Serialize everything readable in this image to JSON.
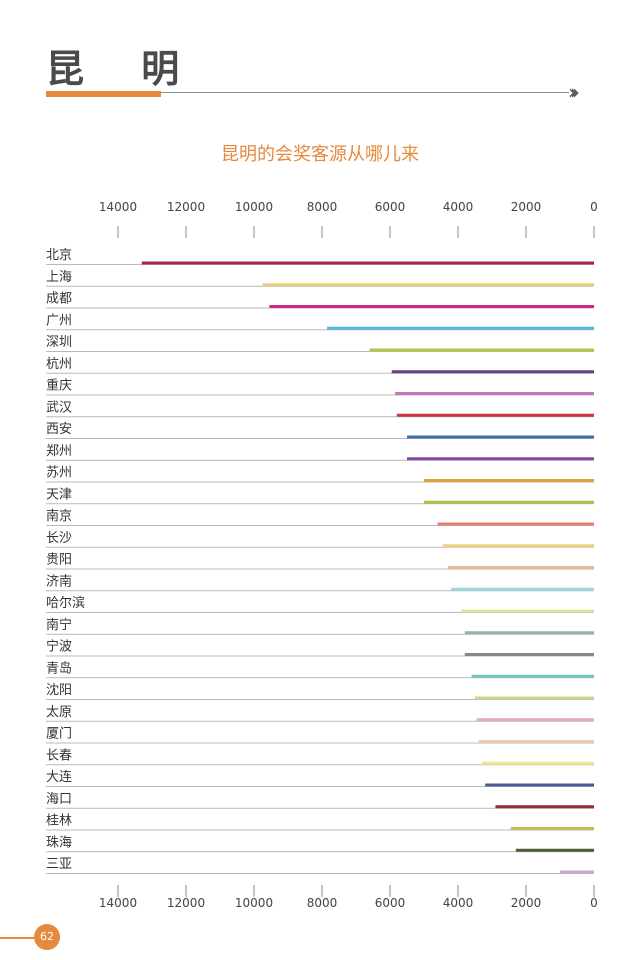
{
  "header": {
    "title": "昆 明",
    "chevrons": "›››"
  },
  "colors": {
    "accent": "#e58a3c",
    "title_text": "#4a4a4a"
  },
  "page_number": "62",
  "chart_data": {
    "type": "bar",
    "orientation": "horizontal",
    "x_direction": "reversed",
    "title": "昆明的会奖客源从哪儿来",
    "xlabel": "",
    "ylabel": "",
    "xlim": [
      0,
      14000
    ],
    "xticks": [
      14000,
      12000,
      10000,
      8000,
      6000,
      4000,
      2000,
      0
    ],
    "grid": false,
    "categories": [
      "北京",
      "上海",
      "成都",
      "广州",
      "深圳",
      "杭州",
      "重庆",
      "武汉",
      "西安",
      "郑州",
      "苏州",
      "天津",
      "南京",
      "长沙",
      "贵阳",
      "济南",
      "哈尔滨",
      "南宁",
      "宁波",
      "青岛",
      "沈阳",
      "太原",
      "厦门",
      "长春",
      "大连",
      "海口",
      "桂林",
      "珠海",
      "三亚"
    ],
    "values": [
      13300,
      9750,
      9550,
      7850,
      6600,
      5950,
      5850,
      5800,
      5500,
      5500,
      5000,
      5000,
      4600,
      4450,
      4300,
      4200,
      3900,
      3800,
      3800,
      3600,
      3500,
      3450,
      3400,
      3300,
      3200,
      2900,
      2450,
      2300,
      1000
    ],
    "colors": [
      "#a6224b",
      "#e6cf7c",
      "#c92a85",
      "#55b6de",
      "#b5c349",
      "#6c3f86",
      "#c872b8",
      "#c8373f",
      "#3b6fb0",
      "#7e4a9c",
      "#e3a13a",
      "#a6c44c",
      "#e77c6c",
      "#ead27e",
      "#e3b990",
      "#9fd6df",
      "#dfe4a3",
      "#99b1a6",
      "#888888",
      "#74c3c2",
      "#cbd58a",
      "#e3aac6",
      "#e9ccb6",
      "#f3e48e",
      "#4b5b98",
      "#9a2d33",
      "#c6bc55",
      "#4d5f37",
      "#cfa4cf"
    ]
  }
}
